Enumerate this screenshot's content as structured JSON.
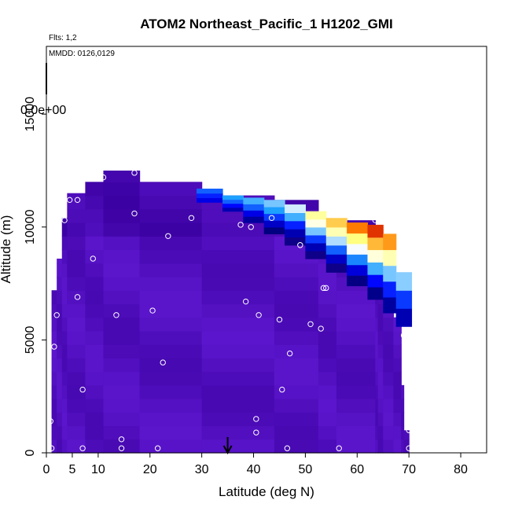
{
  "chart_data": {
    "type": "heatmap",
    "title": "ATOM2 Northeast_Pacific_1 H1202_GMI",
    "subtitle_flights": "Flts: 1,2",
    "subtitle_dates": "MMDD: 0126,0129",
    "overlap_label": "0.0e+00",
    "xlabel": "Latitude (deg N)",
    "ylabel": "Altitude (m)",
    "xlim": [
      0,
      85
    ],
    "ylim": [
      0,
      18000
    ],
    "x_ticks": [
      0,
      5,
      10,
      20,
      30,
      40,
      50,
      60,
      70,
      80
    ],
    "y_ticks": [
      0,
      5000,
      10000,
      15000
    ],
    "grid": false,
    "arrow_marker_x": 35,
    "colorscale": [
      "#6a1fe0",
      "#3a00a0",
      "#000080",
      "#0000ff",
      "#1ea0ff",
      "#ffffff",
      "#ffff80",
      "#ff8000",
      "#cc0000"
    ],
    "background_value_color": "#6d22e6",
    "columns": [
      {
        "x0": 1.0,
        "x1": 2.0,
        "ztop": 7200
      },
      {
        "x0": 2.0,
        "x1": 3.0,
        "ztop": 8600
      },
      {
        "x0": 3.0,
        "x1": 4.0,
        "ztop": 10400
      },
      {
        "x0": 4.0,
        "x1": 7.5,
        "ztop": 11500
      },
      {
        "x0": 7.5,
        "x1": 11.0,
        "ztop": 12000
      },
      {
        "x0": 11.0,
        "x1": 18.0,
        "ztop": 12500
      },
      {
        "x0": 18.0,
        "x1": 30.0,
        "ztop": 12000
      },
      {
        "x0": 30.0,
        "x1": 44.0,
        "ztop": 11400
      },
      {
        "x0": 44.0,
        "x1": 52.5,
        "ztop": 11200
      },
      {
        "x0": 52.5,
        "x1": 56.0,
        "ztop": 10300
      },
      {
        "x0": 56.0,
        "x1": 63.5,
        "ztop": 10300
      },
      {
        "x0": 63.5,
        "x1": 64.0,
        "ztop": 10000
      },
      {
        "x0": 64.0,
        "x1": 65.0,
        "ztop": 9700
      },
      {
        "x0": 65.0,
        "x1": 67.0,
        "ztop": 8000
      },
      {
        "x0": 67.0,
        "x1": 68.5,
        "ztop": 6000
      },
      {
        "x0": 68.5,
        "x1": 69.0,
        "ztop": 3000
      },
      {
        "x0": 69.0,
        "x1": 70.0,
        "ztop": 1000
      }
    ],
    "plume": [
      {
        "x": 29.0,
        "zlo": 11100,
        "zhi": 11700,
        "v": [
          0.35,
          0.4,
          0.45
        ]
      },
      {
        "x": 34.0,
        "zlo": 10700,
        "zhi": 11400,
        "v": [
          0.3,
          0.38,
          0.45,
          0.5
        ]
      },
      {
        "x": 38.0,
        "zlo": 10200,
        "zhi": 11300,
        "v": [
          0.28,
          0.35,
          0.45,
          0.52
        ]
      },
      {
        "x": 42.0,
        "zlo": 9700,
        "zhi": 11200,
        "v": [
          0.25,
          0.32,
          0.42,
          0.5,
          0.55
        ]
      },
      {
        "x": 46.0,
        "zlo": 9200,
        "zhi": 11000,
        "v": [
          0.22,
          0.3,
          0.4,
          0.52,
          0.6
        ]
      },
      {
        "x": 50.0,
        "zlo": 8600,
        "zhi": 10700,
        "v": [
          0.22,
          0.3,
          0.42,
          0.55,
          0.65,
          0.72
        ]
      },
      {
        "x": 54.0,
        "zlo": 8000,
        "zhi": 10400,
        "v": [
          0.22,
          0.32,
          0.45,
          0.58,
          0.7,
          0.8
        ]
      },
      {
        "x": 58.0,
        "zlo": 7400,
        "zhi": 10200,
        "v": [
          0.24,
          0.34,
          0.48,
          0.62,
          0.75,
          0.88
        ]
      },
      {
        "x": 62.0,
        "zlo": 6800,
        "zhi": 10100,
        "v": [
          0.26,
          0.38,
          0.52,
          0.66,
          0.82,
          0.95
        ]
      },
      {
        "x": 65.0,
        "zlo": 6200,
        "zhi": 9700,
        "v": [
          0.28,
          0.4,
          0.55,
          0.7,
          0.85
        ]
      },
      {
        "x": 67.5,
        "zlo": 5600,
        "zhi": 8000,
        "v": [
          0.3,
          0.42,
          0.56
        ]
      }
    ],
    "obs_points": [
      {
        "x": 1.0,
        "y": 200
      },
      {
        "x": 0.8,
        "y": 1400
      },
      {
        "x": 1.5,
        "y": 4700
      },
      {
        "x": 2.0,
        "y": 6100
      },
      {
        "x": 3.5,
        "y": 10300
      },
      {
        "x": 4.5,
        "y": 11200
      },
      {
        "x": 6.0,
        "y": 11200
      },
      {
        "x": 6.0,
        "y": 6900
      },
      {
        "x": 7.0,
        "y": 200
      },
      {
        "x": 7.0,
        "y": 2800
      },
      {
        "x": 9.0,
        "y": 8600
      },
      {
        "x": 11.0,
        "y": 12200
      },
      {
        "x": 13.5,
        "y": 6100
      },
      {
        "x": 14.5,
        "y": 600
      },
      {
        "x": 14.5,
        "y": 200
      },
      {
        "x": 17.0,
        "y": 12400
      },
      {
        "x": 17.0,
        "y": 10600
      },
      {
        "x": 20.5,
        "y": 6300
      },
      {
        "x": 21.5,
        "y": 200
      },
      {
        "x": 22.5,
        "y": 4000
      },
      {
        "x": 23.5,
        "y": 9600
      },
      {
        "x": 28.0,
        "y": 10400
      },
      {
        "x": 37.5,
        "y": 10100
      },
      {
        "x": 38.5,
        "y": 6700
      },
      {
        "x": 39.5,
        "y": 10000
      },
      {
        "x": 40.5,
        "y": 1500
      },
      {
        "x": 40.5,
        "y": 900
      },
      {
        "x": 41.0,
        "y": 6100
      },
      {
        "x": 43.5,
        "y": 10400
      },
      {
        "x": 45.0,
        "y": 5900
      },
      {
        "x": 45.5,
        "y": 2800
      },
      {
        "x": 46.5,
        "y": 200
      },
      {
        "x": 47.0,
        "y": 4400
      },
      {
        "x": 49.0,
        "y": 9200
      },
      {
        "x": 51.0,
        "y": 5700
      },
      {
        "x": 53.0,
        "y": 5500
      },
      {
        "x": 53.5,
        "y": 7300
      },
      {
        "x": 54.0,
        "y": 7300
      },
      {
        "x": 56.5,
        "y": 200
      },
      {
        "x": 63.5,
        "y": 10300
      },
      {
        "x": 69.0,
        "y": 5200
      },
      {
        "x": 70.0,
        "y": 1000
      },
      {
        "x": 70.0,
        "y": 200
      }
    ]
  }
}
